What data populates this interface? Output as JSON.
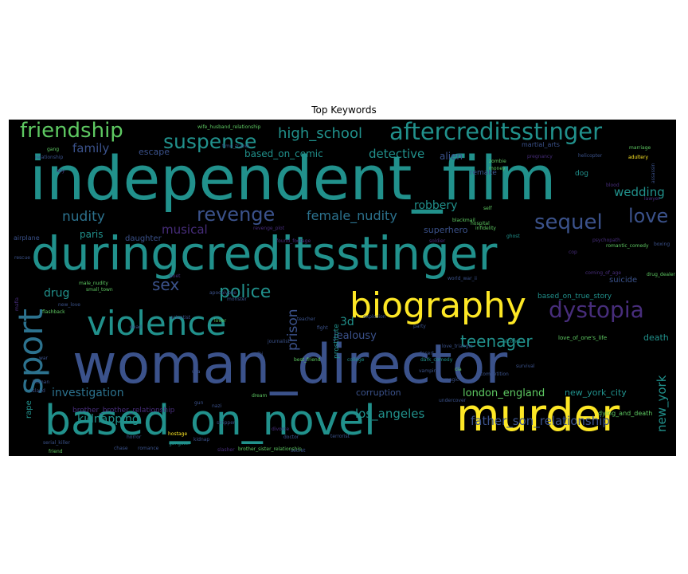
{
  "title": "Top Keywords",
  "background_color": "#000000",
  "palette": [
    "#440154",
    "#3b528b",
    "#21918c",
    "#5ec962",
    "#fde725"
  ],
  "words": [
    {
      "text": "independent_film",
      "color": "#21918c"
    },
    {
      "text": "woman_director",
      "color": "#3b528b"
    },
    {
      "text": "duringcreditsstinger",
      "color": "#21918c"
    },
    {
      "text": "based_on_novel",
      "color": "#21918c"
    },
    {
      "text": "murder",
      "color": "#fde725"
    },
    {
      "text": "biography",
      "color": "#fde725"
    },
    {
      "text": "violence",
      "color": "#21918c"
    },
    {
      "text": "sport",
      "color": "#2c728e"
    },
    {
      "text": "aftercreditsstinger",
      "color": "#21918c"
    },
    {
      "text": "friendship",
      "color": "#5ec962"
    },
    {
      "text": "suspense",
      "color": "#21918c"
    },
    {
      "text": "revenge",
      "color": "#3b528b"
    },
    {
      "text": "dystopia",
      "color": "#472d7b"
    },
    {
      "text": "love",
      "color": "#3b528b"
    },
    {
      "text": "sequel",
      "color": "#3b528b"
    },
    {
      "text": "police",
      "color": "#21918c"
    },
    {
      "text": "teenager",
      "color": "#21918c"
    },
    {
      "text": "high_school",
      "color": "#21918c"
    },
    {
      "text": "sex",
      "color": "#3b528b"
    },
    {
      "text": "nudity",
      "color": "#2c728e"
    },
    {
      "text": "family",
      "color": "#3b528b"
    },
    {
      "text": "female_nudity",
      "color": "#2c728e"
    },
    {
      "text": "musical",
      "color": "#472d7b"
    },
    {
      "text": "prison",
      "color": "#3b528b"
    },
    {
      "text": "wedding",
      "color": "#21918c"
    },
    {
      "text": "drug",
      "color": "#21918c"
    },
    {
      "text": "3d",
      "color": "#21918c"
    },
    {
      "text": "paris",
      "color": "#21918c"
    },
    {
      "text": "detective",
      "color": "#21918c"
    },
    {
      "text": "based_on_comic",
      "color": "#21918c"
    },
    {
      "text": "escape",
      "color": "#3b528b"
    },
    {
      "text": "robbery",
      "color": "#21918c"
    },
    {
      "text": "investigation",
      "color": "#2c728e"
    },
    {
      "text": "london_england",
      "color": "#5ec962"
    },
    {
      "text": "los_angeles",
      "color": "#21918c"
    },
    {
      "text": "new_york",
      "color": "#21918c"
    },
    {
      "text": "kidnapping",
      "color": "#21918c"
    },
    {
      "text": "father_son_relationship",
      "color": "#3b528b"
    },
    {
      "text": "brother_brother_relationship",
      "color": "#472d7b"
    },
    {
      "text": "jealousy",
      "color": "#3b528b"
    },
    {
      "text": "new_york_city",
      "color": "#21918c"
    },
    {
      "text": "corruption",
      "color": "#3b528b"
    },
    {
      "text": "death",
      "color": "#21918c"
    },
    {
      "text": "alien",
      "color": "#3b528b"
    },
    {
      "text": "daughter",
      "color": "#3b528b"
    },
    {
      "text": "superhero",
      "color": "#3b528b"
    },
    {
      "text": "suicide",
      "color": "#3b528b"
    },
    {
      "text": "prostitute",
      "color": "#21918c"
    },
    {
      "text": "based_on_true_story",
      "color": "#21918c"
    },
    {
      "text": "dying_and_death",
      "color": "#5ec962"
    },
    {
      "text": "love_of_one's_life",
      "color": "#5ec962"
    },
    {
      "text": "brother_sister_relationship",
      "color": "#5ec962"
    },
    {
      "text": "martial_arts",
      "color": "#3b528b"
    },
    {
      "text": "wife_husband_relationship",
      "color": "#5ec962"
    },
    {
      "text": "time_travel",
      "color": "#3b528b"
    },
    {
      "text": "remake",
      "color": "#3b528b"
    },
    {
      "text": "rape",
      "color": "#21918c"
    },
    {
      "text": "soldier",
      "color": "#472d7b"
    },
    {
      "text": "airplane",
      "color": "#3b528b"
    },
    {
      "text": "dark_comedy",
      "color": "#21918c"
    },
    {
      "text": "coming_of_age",
      "color": "#472d7b"
    },
    {
      "text": "world_war_ii",
      "color": "#3b528b"
    },
    {
      "text": "romantic_comedy",
      "color": "#5ec962"
    },
    {
      "text": "dog",
      "color": "#21918c"
    },
    {
      "text": "marriage",
      "color": "#5ec962"
    },
    {
      "text": "zombie",
      "color": "#5ec962"
    },
    {
      "text": "money",
      "color": "#5ec962"
    },
    {
      "text": "gang",
      "color": "#5ec962"
    },
    {
      "text": "hostage",
      "color": "#fde725"
    },
    {
      "text": "gangster",
      "color": "#21918c"
    },
    {
      "text": "flashback",
      "color": "#5ec962"
    },
    {
      "text": "vampire",
      "color": "#3b528b"
    },
    {
      "text": "alcohol",
      "color": "#21918c"
    },
    {
      "text": "ghost",
      "color": "#21918c"
    },
    {
      "text": "hospital",
      "color": "#5ec962"
    },
    {
      "text": "friend",
      "color": "#5ec962"
    },
    {
      "text": "terrorist",
      "color": "#3b528b"
    },
    {
      "text": "blackmail",
      "color": "#5ec962"
    },
    {
      "text": "secret",
      "color": "#3b528b"
    },
    {
      "text": "lover",
      "color": "#5ec962"
    },
    {
      "text": "relationship",
      "color": "#3b528b"
    },
    {
      "text": "scientist",
      "color": "#3b528b"
    },
    {
      "text": "journalist",
      "color": "#3b528b"
    },
    {
      "text": "love_triangle",
      "color": "#3b528b"
    },
    {
      "text": "pregnancy",
      "color": "#472d7b"
    },
    {
      "text": "self",
      "color": "#5ec962"
    },
    {
      "text": "infidelity",
      "color": "#5ec962"
    },
    {
      "text": "helicopter",
      "color": "#3b528b"
    },
    {
      "text": "chase",
      "color": "#3b528b"
    },
    {
      "text": "cia",
      "color": "#5ec962"
    },
    {
      "text": "survival",
      "color": "#3b528b"
    },
    {
      "text": "magic",
      "color": "#3b528b"
    },
    {
      "text": "best_friend",
      "color": "#5ec962"
    },
    {
      "text": "dream",
      "color": "#5ec962"
    },
    {
      "text": "doctor",
      "color": "#3b528b"
    },
    {
      "text": "party",
      "color": "#3b528b"
    },
    {
      "text": "competition",
      "color": "#3b528b"
    },
    {
      "text": "teacher",
      "color": "#3b528b"
    },
    {
      "text": "fight",
      "color": "#3b528b"
    },
    {
      "text": "explosion",
      "color": "#3b528b"
    },
    {
      "text": "small_town",
      "color": "#5ec962"
    },
    {
      "text": "male_nudity",
      "color": "#5ec962"
    },
    {
      "text": "new_love",
      "color": "#3b528b"
    },
    {
      "text": "monster",
      "color": "#3b528b"
    },
    {
      "text": "apocalypse",
      "color": "#3b528b"
    },
    {
      "text": "psychopath",
      "color": "#472d7b"
    },
    {
      "text": "found_footage",
      "color": "#472d7b"
    },
    {
      "text": "usa",
      "color": "#3b528b"
    },
    {
      "text": "adultery",
      "color": "#fde725"
    },
    {
      "text": "divorce",
      "color": "#472d7b"
    },
    {
      "text": "cop",
      "color": "#472d7b"
    },
    {
      "text": "serial_killer",
      "color": "#3b528b"
    },
    {
      "text": "romance",
      "color": "#3b528b"
    },
    {
      "text": "slasher",
      "color": "#472d7b"
    },
    {
      "text": "dead",
      "color": "#3b528b"
    },
    {
      "text": "drug_dealer",
      "color": "#5ec962"
    },
    {
      "text": "mafia",
      "color": "#472d7b"
    },
    {
      "text": "rescue",
      "color": "#3b528b"
    },
    {
      "text": "assassin",
      "color": "#3b528b"
    },
    {
      "text": "desert",
      "color": "#3b528b"
    },
    {
      "text": "boxing",
      "color": "#3b528b"
    },
    {
      "text": "war",
      "color": "#3b528b"
    },
    {
      "text": "fbi",
      "color": "#3b528b"
    },
    {
      "text": "kidnap",
      "color": "#3b528b"
    },
    {
      "text": "gun",
      "color": "#3b528b"
    },
    {
      "text": "island",
      "color": "#3b528b"
    },
    {
      "text": "undercover",
      "color": "#3b528b"
    },
    {
      "text": "college",
      "color": "#21918c"
    },
    {
      "text": "horror",
      "color": "#3b528b"
    },
    {
      "text": "nazi",
      "color": "#3b528b"
    },
    {
      "text": "stripper",
      "color": "#3b528b"
    },
    {
      "text": "hitman",
      "color": "#3b528b"
    },
    {
      "text": "lawyer",
      "color": "#472d7b"
    },
    {
      "text": "blood",
      "color": "#472d7b"
    },
    {
      "text": "spy",
      "color": "#472d7b"
    },
    {
      "text": "poet",
      "color": "#472d7b"
    },
    {
      "text": "revenge_plot",
      "color": "#472d7b"
    }
  ]
}
